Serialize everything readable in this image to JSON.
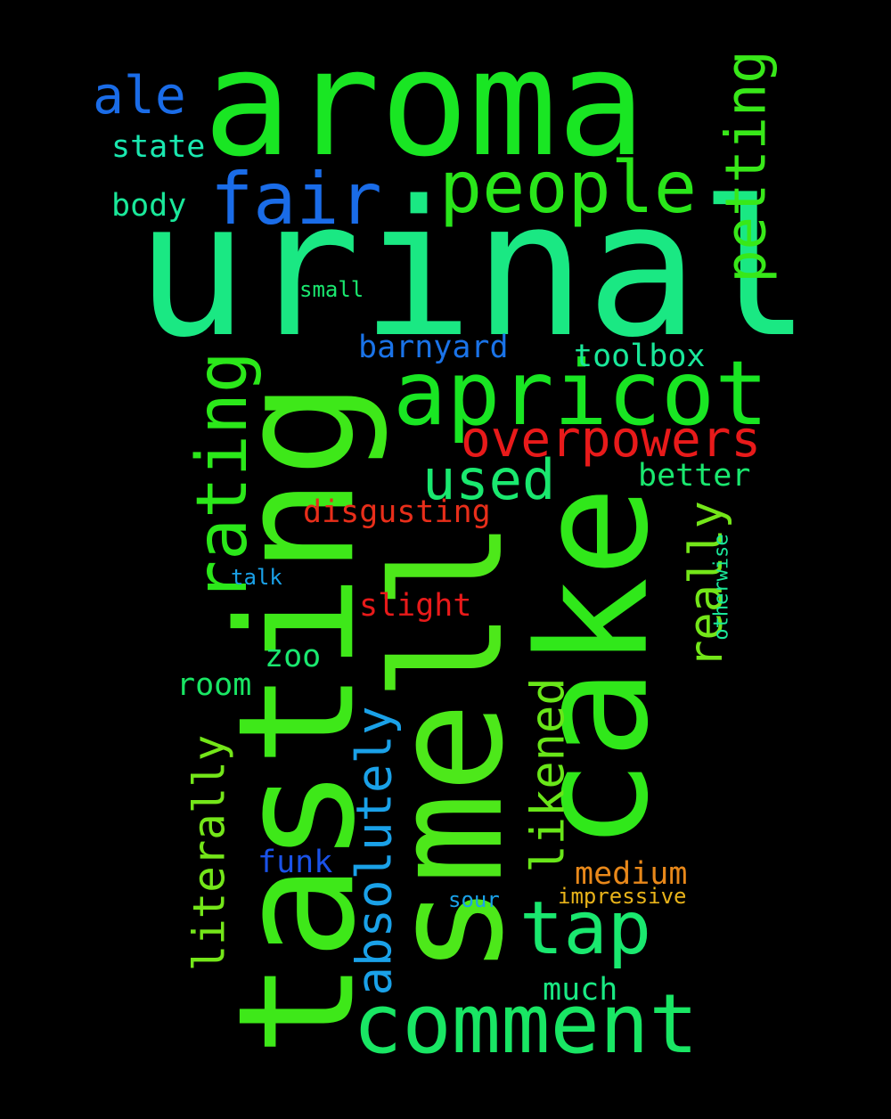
{
  "words": [
    {
      "text": "aroma",
      "color": "#19e623"
    },
    {
      "text": "urinal",
      "color": "#1ae883"
    },
    {
      "text": "tasting",
      "color": "#3ee819"
    },
    {
      "text": "smell",
      "color": "#4de81a"
    },
    {
      "text": "cake",
      "color": "#30e81a"
    },
    {
      "text": "apricot",
      "color": "#19e623"
    },
    {
      "text": "comment",
      "color": "#19e664"
    },
    {
      "text": "people",
      "color": "#29e61a"
    },
    {
      "text": "fair",
      "color": "#1a6ce8"
    },
    {
      "text": "petting",
      "color": "#38e819"
    },
    {
      "text": "rating",
      "color": "#2be81a"
    },
    {
      "text": "overpowers",
      "color": "#e81a1a"
    },
    {
      "text": "absolutely",
      "color": "#1aa1e8"
    },
    {
      "text": "used",
      "color": "#1ae86f"
    },
    {
      "text": "tap",
      "color": "#1ae86f"
    },
    {
      "text": "really",
      "color": "#74e619"
    },
    {
      "text": "likened",
      "color": "#69e619"
    },
    {
      "text": "literally",
      "color": "#74e619"
    },
    {
      "text": "ale",
      "color": "#1a6ce8"
    },
    {
      "text": "barnyard",
      "color": "#1a73e8"
    },
    {
      "text": "toolbox",
      "color": "#1ae89a"
    },
    {
      "text": "disgusting",
      "color": "#e82e1a"
    },
    {
      "text": "slight",
      "color": "#e81a1a"
    },
    {
      "text": "medium",
      "color": "#e8881a"
    },
    {
      "text": "state",
      "color": "#1ae8b0"
    },
    {
      "text": "body",
      "color": "#1ae89a"
    },
    {
      "text": "better",
      "color": "#1ae86f"
    },
    {
      "text": "zoo",
      "color": "#1ae86f"
    },
    {
      "text": "room",
      "color": "#19e664"
    },
    {
      "text": "funk",
      "color": "#1a52e8"
    },
    {
      "text": "much",
      "color": "#1ae883"
    },
    {
      "text": "impressive",
      "color": "#e8b31a"
    },
    {
      "text": "sour",
      "color": "#1aa1e8"
    },
    {
      "text": "talk",
      "color": "#1aa1e8"
    },
    {
      "text": "small",
      "color": "#1ae86f"
    },
    {
      "text": "otherwise",
      "color": "#1ae89a"
    }
  ]
}
